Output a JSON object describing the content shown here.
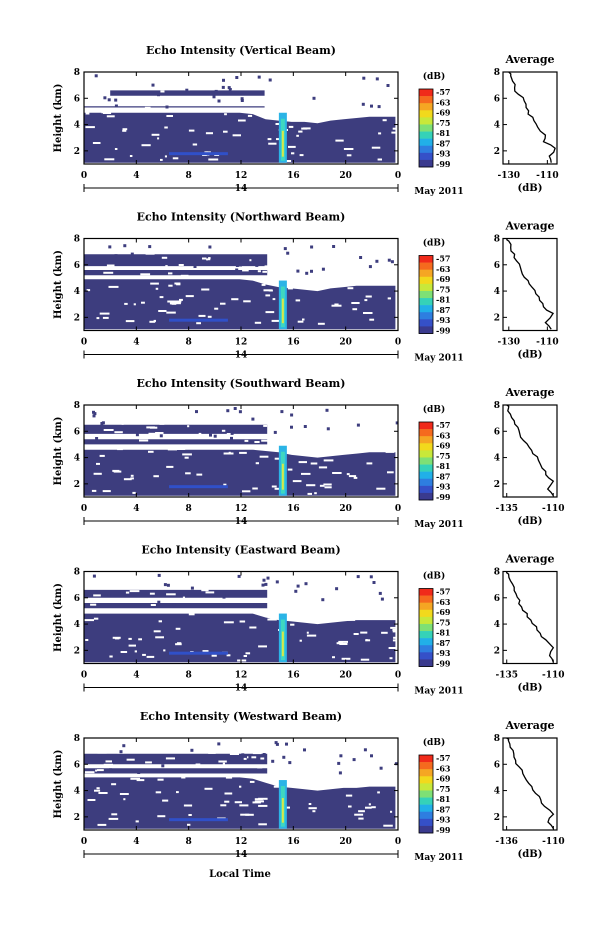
{
  "figure": {
    "xlabel": "Local Time",
    "date_label": "May 2011"
  },
  "chart_data": [
    {
      "type": "heatmap",
      "title": "Echo Intensity (Vertical Beam)",
      "xlabel": "",
      "ylabel": "Height (km)",
      "xlim": [
        0,
        24
      ],
      "ylim": [
        1,
        8
      ],
      "x_ticks": [
        "0",
        "4",
        "8",
        "12",
        "16",
        "20",
        "0"
      ],
      "y_ticks": [
        "2",
        "4",
        "6",
        "8"
      ],
      "day_label": "14",
      "colorbar": {
        "label": "(dB)",
        "ticks": [
          "-57",
          "-63",
          "-69",
          "-75",
          "-81",
          "-87",
          "-93",
          "-99"
        ]
      },
      "layers": [
        {
          "from": 0,
          "to": 23.8,
          "bottom": 1.1,
          "top": [
            4.9,
            4.9,
            4.9,
            4.9,
            4.9,
            4.9,
            4.9,
            4.9,
            4.9,
            4.9,
            4.9,
            4.9,
            4.9,
            4.8,
            4.4,
            4.3,
            4.2,
            4.2,
            4.1,
            4.3,
            4.4,
            4.5,
            4.6,
            4.6,
            4.6
          ]
        },
        {
          "from": 0,
          "to": 13.8,
          "bottom": 5.3,
          "top": [
            5.4,
            5.4,
            5.4,
            5.4,
            5.4,
            5.4,
            5.4,
            5.4,
            5.4,
            5.4,
            5.4,
            5.4,
            5.4,
            5.4,
            5.4
          ]
        },
        {
          "from": 2,
          "to": 13.8,
          "bottom": 6.2,
          "top": [
            6.6,
            6.6,
            6.6,
            6.6,
            6.6,
            6.6,
            6.6,
            6.6,
            6.6,
            6.6,
            6.6,
            6.6,
            6.6,
            6.6,
            6.6
          ]
        }
      ],
      "plume": {
        "x": 15.2,
        "bottom": 1.1,
        "top": 4.9
      },
      "average": {
        "title": "Average",
        "xlabel": "(dB)",
        "x_ticks": [
          "-130",
          "-110"
        ],
        "xlim": [
          -133,
          -105
        ],
        "y_ticks": [
          "2",
          "4",
          "6",
          "8"
        ],
        "profile": [
          [
            -108,
            1.1
          ],
          [
            -109,
            1.6
          ],
          [
            -106,
            2.2
          ],
          [
            -112,
            2.7
          ],
          [
            -111,
            3.2
          ],
          [
            -115,
            3.8
          ],
          [
            -117,
            4.3
          ],
          [
            -120,
            4.8
          ],
          [
            -121,
            5.3
          ],
          [
            -122,
            5.8
          ],
          [
            -125,
            6.3
          ],
          [
            -127,
            6.8
          ],
          [
            -128,
            7.3
          ],
          [
            -129,
            7.7
          ],
          [
            -130,
            8
          ]
        ]
      }
    },
    {
      "type": "heatmap",
      "title": "Echo Intensity (Northward Beam)",
      "xlabel": "",
      "ylabel": "Height (km)",
      "xlim": [
        0,
        24
      ],
      "ylim": [
        1,
        8
      ],
      "x_ticks": [
        "0",
        "4",
        "8",
        "12",
        "16",
        "20",
        "0"
      ],
      "y_ticks": [
        "2",
        "4",
        "6",
        "8"
      ],
      "day_label": "14",
      "colorbar": {
        "label": "(dB)",
        "ticks": [
          "-57",
          "-63",
          "-69",
          "-75",
          "-81",
          "-87",
          "-93",
          "-99"
        ]
      },
      "layers": [
        {
          "from": 0,
          "to": 23.8,
          "bottom": 1.1,
          "top": [
            4.9,
            4.9,
            4.9,
            4.9,
            4.9,
            4.9,
            4.9,
            4.9,
            4.9,
            4.9,
            4.9,
            4.9,
            4.9,
            4.8,
            4.5,
            4.3,
            4.2,
            4.1,
            4.0,
            4.2,
            4.3,
            4.4,
            4.4,
            4.4,
            4.4
          ]
        },
        {
          "from": 0,
          "to": 14.0,
          "bottom": 5.2,
          "top": [
            5.6,
            5.6,
            5.6,
            5.6,
            5.6,
            5.6,
            5.6,
            5.6,
            5.6,
            5.6,
            5.6,
            5.6,
            5.6,
            5.6,
            5.6
          ]
        },
        {
          "from": 0,
          "to": 14.0,
          "bottom": 5.9,
          "top": [
            6.8,
            6.8,
            6.8,
            6.8,
            6.8,
            6.8,
            6.8,
            6.8,
            6.8,
            6.8,
            6.8,
            6.8,
            6.8,
            6.8,
            6.8
          ]
        }
      ],
      "plume": {
        "x": 15.2,
        "bottom": 1.1,
        "top": 4.8
      },
      "average": {
        "title": "Average",
        "xlabel": "(dB)",
        "x_ticks": [
          "-130",
          "-110"
        ],
        "xlim": [
          -133,
          -105
        ],
        "y_ticks": [
          "2",
          "4",
          "6",
          "8"
        ],
        "profile": [
          [
            -108,
            1.1
          ],
          [
            -111,
            1.6
          ],
          [
            -107,
            2.3
          ],
          [
            -112,
            2.8
          ],
          [
            -114,
            3.3
          ],
          [
            -116,
            3.8
          ],
          [
            -118,
            4.3
          ],
          [
            -120,
            4.8
          ],
          [
            -123,
            5.3
          ],
          [
            -124,
            5.8
          ],
          [
            -126,
            6.3
          ],
          [
            -127,
            6.8
          ],
          [
            -129,
            7.3
          ],
          [
            -130,
            7.8
          ],
          [
            -131,
            8
          ]
        ]
      }
    },
    {
      "type": "heatmap",
      "title": "Echo Intensity (Southward Beam)",
      "xlabel": "",
      "ylabel": "Height (km)",
      "xlim": [
        0,
        24
      ],
      "ylim": [
        1,
        8
      ],
      "x_ticks": [
        "0",
        "4",
        "8",
        "12",
        "16",
        "20",
        "0"
      ],
      "y_ticks": [
        "2",
        "4",
        "6",
        "8"
      ],
      "day_label": "14",
      "colorbar": {
        "label": "(dB)",
        "ticks": [
          "-57",
          "-63",
          "-69",
          "-75",
          "-81",
          "-87",
          "-93",
          "-99"
        ]
      },
      "layers": [
        {
          "from": 0,
          "to": 23.8,
          "bottom": 1.1,
          "top": [
            4.6,
            4.6,
            4.6,
            4.6,
            4.6,
            4.6,
            4.6,
            4.6,
            4.6,
            4.6,
            4.6,
            4.6,
            4.6,
            4.6,
            4.5,
            4.4,
            4.2,
            4.1,
            4.0,
            4.1,
            4.2,
            4.3,
            4.4,
            4.4,
            4.4
          ]
        },
        {
          "from": 0,
          "to": 14.0,
          "bottom": 5.0,
          "top": [
            5.4,
            5.4,
            5.4,
            5.4,
            5.4,
            5.4,
            5.4,
            5.4,
            5.4,
            5.4,
            5.4,
            5.4,
            5.4,
            5.4,
            5.4
          ]
        },
        {
          "from": 0,
          "to": 14.0,
          "bottom": 5.8,
          "top": [
            6.5,
            6.5,
            6.5,
            6.5,
            6.5,
            6.5,
            6.5,
            6.5,
            6.5,
            6.5,
            6.5,
            6.5,
            6.5,
            6.5,
            6.5
          ]
        }
      ],
      "plume": {
        "x": 15.2,
        "bottom": 1.1,
        "top": 4.9
      },
      "average": {
        "title": "Average",
        "xlabel": "(dB)",
        "x_ticks": [
          "-135",
          "-110"
        ],
        "xlim": [
          -137,
          -108
        ],
        "y_ticks": [
          "2",
          "4",
          "6",
          "8"
        ],
        "profile": [
          [
            -110,
            1.1
          ],
          [
            -113,
            1.6
          ],
          [
            -110,
            2.2
          ],
          [
            -114,
            2.7
          ],
          [
            -116,
            3.2
          ],
          [
            -118,
            3.8
          ],
          [
            -121,
            4.3
          ],
          [
            -123,
            4.8
          ],
          [
            -126,
            5.3
          ],
          [
            -128,
            5.8
          ],
          [
            -129,
            6.3
          ],
          [
            -131,
            6.8
          ],
          [
            -133,
            7.3
          ],
          [
            -134,
            7.8
          ],
          [
            -135,
            8
          ]
        ]
      }
    },
    {
      "type": "heatmap",
      "title": "Echo Intensity (Eastward Beam)",
      "xlabel": "",
      "ylabel": "Height (km)",
      "xlim": [
        0,
        24
      ],
      "ylim": [
        1,
        8
      ],
      "x_ticks": [
        "0",
        "4",
        "8",
        "12",
        "16",
        "20",
        "0"
      ],
      "y_ticks": [
        "2",
        "4",
        "6",
        "8"
      ],
      "day_label": "14",
      "colorbar": {
        "label": "(dB)",
        "ticks": [
          "-57",
          "-63",
          "-69",
          "-75",
          "-81",
          "-87",
          "-93",
          "-99"
        ]
      },
      "layers": [
        {
          "from": 0,
          "to": 23.8,
          "bottom": 1.1,
          "top": [
            4.8,
            4.8,
            4.8,
            4.8,
            4.8,
            4.8,
            4.8,
            4.8,
            4.8,
            4.8,
            4.8,
            4.8,
            4.8,
            4.8,
            4.5,
            4.3,
            4.2,
            4.1,
            4.0,
            4.1,
            4.2,
            4.3,
            4.3,
            4.3,
            4.3
          ]
        },
        {
          "from": 0,
          "to": 14.0,
          "bottom": 5.2,
          "top": [
            5.6,
            5.6,
            5.6,
            5.6,
            5.6,
            5.6,
            5.6,
            5.6,
            5.6,
            5.6,
            5.6,
            5.6,
            5.6,
            5.6,
            5.6
          ]
        },
        {
          "from": 0,
          "to": 14.0,
          "bottom": 6.0,
          "top": [
            6.6,
            6.6,
            6.6,
            6.6,
            6.6,
            6.6,
            6.6,
            6.6,
            6.6,
            6.6,
            6.6,
            6.6,
            6.6,
            6.6,
            6.6
          ]
        }
      ],
      "plume": {
        "x": 15.2,
        "bottom": 1.1,
        "top": 4.8
      },
      "average": {
        "title": "Average",
        "xlabel": "(dB)",
        "x_ticks": [
          "-135",
          "-110"
        ],
        "xlim": [
          -137,
          -108
        ],
        "y_ticks": [
          "2",
          "4",
          "6",
          "8"
        ],
        "profile": [
          [
            -110,
            1.1
          ],
          [
            -112,
            1.6
          ],
          [
            -110,
            2.2
          ],
          [
            -114,
            2.8
          ],
          [
            -117,
            3.3
          ],
          [
            -119,
            3.8
          ],
          [
            -122,
            4.3
          ],
          [
            -124,
            4.8
          ],
          [
            -127,
            5.3
          ],
          [
            -128,
            5.8
          ],
          [
            -130,
            6.3
          ],
          [
            -131,
            6.8
          ],
          [
            -133,
            7.3
          ],
          [
            -134,
            7.8
          ],
          [
            -135,
            8
          ]
        ]
      }
    },
    {
      "type": "heatmap",
      "title": "Echo Intensity (Westward Beam)",
      "xlabel": "",
      "ylabel": "Height (km)",
      "xlim": [
        0,
        24
      ],
      "ylim": [
        1,
        8
      ],
      "x_ticks": [
        "0",
        "4",
        "8",
        "12",
        "16",
        "20",
        "0"
      ],
      "y_ticks": [
        "2",
        "4",
        "6",
        "8"
      ],
      "day_label": "14",
      "colorbar": {
        "label": "(dB)",
        "ticks": [
          "-57",
          "-63",
          "-69",
          "-75",
          "-81",
          "-87",
          "-93",
          "-99"
        ]
      },
      "layers": [
        {
          "from": 0,
          "to": 23.8,
          "bottom": 1.1,
          "top": [
            5.0,
            5.0,
            5.0,
            5.0,
            5.0,
            5.0,
            5.0,
            5.0,
            5.0,
            5.0,
            5.0,
            5.0,
            5.0,
            4.9,
            4.6,
            4.3,
            4.2,
            4.1,
            4.0,
            4.1,
            4.2,
            4.2,
            4.3,
            4.3,
            4.3
          ]
        },
        {
          "from": 0,
          "to": 14.0,
          "bottom": 5.3,
          "top": [
            5.7,
            5.7,
            5.7,
            5.7,
            5.7,
            5.7,
            5.7,
            5.7,
            5.7,
            5.7,
            5.7,
            5.7,
            5.7,
            5.7,
            5.7
          ]
        },
        {
          "from": 0,
          "to": 14.0,
          "bottom": 6.0,
          "top": [
            6.8,
            6.8,
            6.8,
            6.8,
            6.8,
            6.8,
            6.8,
            6.8,
            6.8,
            6.8,
            6.8,
            6.8,
            6.8,
            6.8,
            6.8
          ]
        }
      ],
      "plume": {
        "x": 15.2,
        "bottom": 1.1,
        "top": 4.8
      },
      "average": {
        "title": "Average",
        "xlabel": "(dB)",
        "x_ticks": [
          "-136",
          "-110"
        ],
        "xlim": [
          -138,
          -108
        ],
        "y_ticks": [
          "2",
          "4",
          "6",
          "8"
        ],
        "profile": [
          [
            -110,
            1.1
          ],
          [
            -113,
            1.6
          ],
          [
            -110,
            2.2
          ],
          [
            -115,
            2.8
          ],
          [
            -117,
            3.3
          ],
          [
            -120,
            3.8
          ],
          [
            -122,
            4.3
          ],
          [
            -125,
            4.8
          ],
          [
            -127,
            5.3
          ],
          [
            -129,
            5.8
          ],
          [
            -131,
            6.3
          ],
          [
            -132,
            6.8
          ],
          [
            -134,
            7.3
          ],
          [
            -135,
            7.8
          ],
          [
            -136,
            8
          ]
        ]
      }
    }
  ]
}
